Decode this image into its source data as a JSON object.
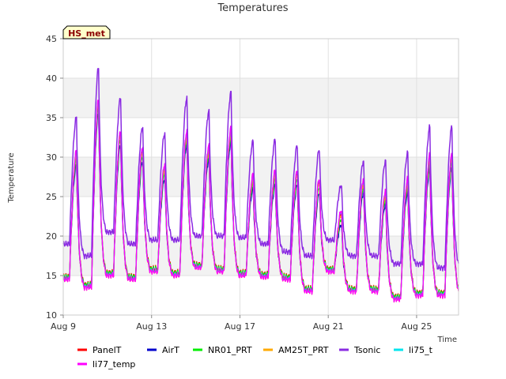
{
  "chart_data": {
    "type": "line",
    "title": "Temperatures",
    "xlabel": "Time",
    "ylabel": "Temperature",
    "badge": "HS_met",
    "x_range": [
      9.0,
      26.9
    ],
    "ylim": [
      10,
      45
    ],
    "y_ticks": [
      10,
      15,
      20,
      25,
      30,
      35,
      40,
      45
    ],
    "x_ticks": [
      {
        "value": 9,
        "label": "Aug 9"
      },
      {
        "value": 13,
        "label": "Aug 13"
      },
      {
        "value": 17,
        "label": "Aug 17"
      },
      {
        "value": 21,
        "label": "Aug 21"
      },
      {
        "value": 25,
        "label": "Aug 25"
      }
    ],
    "daily_minmax": {
      "days": [
        9,
        10,
        11,
        12,
        13,
        14,
        15,
        16,
        17,
        18,
        19,
        20,
        21,
        22,
        23,
        24,
        25,
        26
      ],
      "tsonic_min": [
        19.0,
        17.5,
        20.5,
        19.0,
        19.5,
        19.5,
        20.0,
        20.0,
        19.8,
        19.0,
        18.0,
        17.5,
        19.5,
        17.5,
        17.5,
        16.5,
        16.5,
        16.0
      ],
      "tsonic_max": [
        35.0,
        41.3,
        37.5,
        33.8,
        33.0,
        37.5,
        35.8,
        38.2,
        32.0,
        32.2,
        31.5,
        31.0,
        26.5,
        29.5,
        29.5,
        30.5,
        33.8,
        33.8
      ],
      "base_min": [
        14.5,
        13.5,
        15.0,
        14.5,
        15.5,
        15.0,
        16.0,
        15.5,
        15.0,
        14.8,
        14.5,
        13.0,
        15.5,
        13.0,
        13.0,
        12.0,
        12.5,
        12.5
      ],
      "base_max": [
        30.5,
        37.0,
        33.0,
        31.0,
        28.8,
        33.0,
        31.2,
        33.5,
        27.5,
        28.0,
        28.0,
        27.0,
        23.0,
        27.0,
        25.5,
        27.0,
        30.0,
        30.0
      ],
      "peak_day_fraction": 0.6
    },
    "series": [
      {
        "name": "PanelT",
        "color": "#ff0000",
        "offset_min": 0.4,
        "offset_max": 0.0
      },
      {
        "name": "AirT",
        "color": "#0000cc",
        "offset_min": 0.2,
        "offset_max": -1.5
      },
      {
        "name": "NR01_PRT",
        "color": "#00ee00",
        "offset_min": 0.3,
        "offset_max": -0.8
      },
      {
        "name": "AM25T_PRT",
        "color": "#ffaa00",
        "offset_min": 0.0,
        "offset_max": -0.3
      },
      {
        "name": "Tsonic",
        "color": "#8a2be2",
        "offset_min": 0.0,
        "offset_max": 0.0
      },
      {
        "name": "li75_t",
        "color": "#00e5ee",
        "offset_min": 0.1,
        "offset_max": 0.2
      },
      {
        "name": "li77_temp",
        "color": "#ff00ff",
        "offset_min": 0.0,
        "offset_max": 0.3
      }
    ],
    "legend": {
      "placement": "bottom",
      "rows": [
        [
          "PanelT",
          "AirT",
          "NR01_PRT",
          "AM25T_PRT",
          "Tsonic",
          "li75_t"
        ],
        [
          "li77_temp"
        ]
      ]
    }
  }
}
